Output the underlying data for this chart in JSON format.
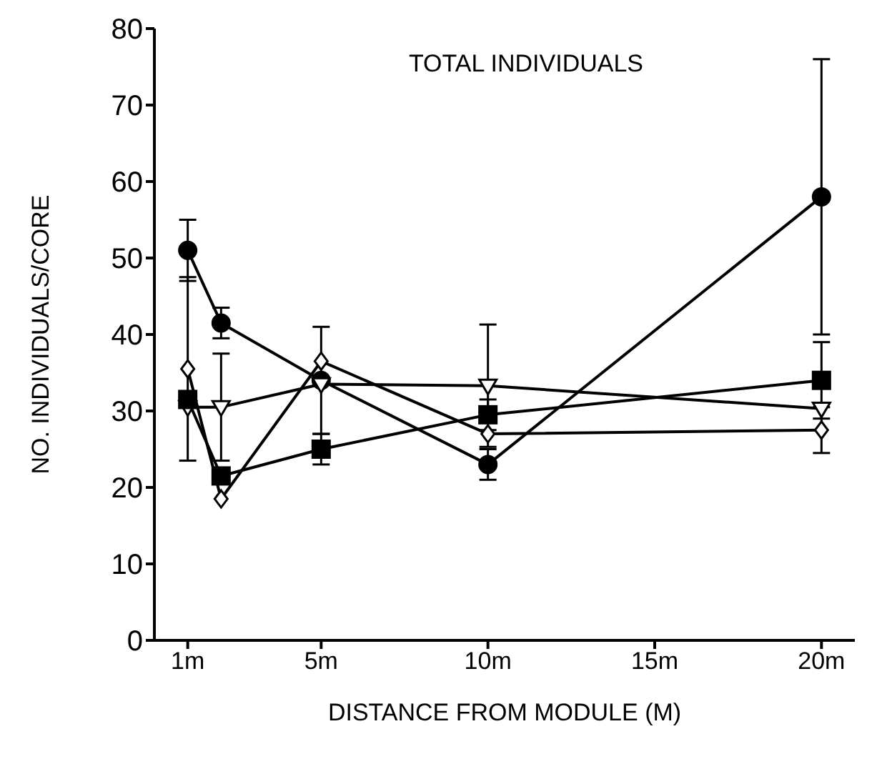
{
  "chart_data": {
    "type": "line",
    "title": "TOTAL INDIVIDUALS",
    "xlabel": "DISTANCE FROM MODULE (M)",
    "ylabel": "NO. INDIVIDUALS/CORE",
    "x": [
      1,
      2,
      5,
      10,
      20
    ],
    "xlim": [
      0,
      21
    ],
    "xticks": [
      {
        "value": 1,
        "label": "1m"
      },
      {
        "value": 5,
        "label": "5m"
      },
      {
        "value": 10,
        "label": "10m"
      },
      {
        "value": 15,
        "label": "15m"
      },
      {
        "value": 20,
        "label": "20m"
      }
    ],
    "ylim": [
      0,
      80
    ],
    "yticks": [
      0,
      10,
      20,
      30,
      40,
      50,
      60,
      70,
      80
    ],
    "series": [
      {
        "color": "#000000",
        "marker": "circle",
        "values": [
          51,
          41.5,
          34,
          23,
          58
        ],
        "errors": [
          4,
          2,
          7,
          2,
          18
        ]
      },
      {
        "color": "#000000",
        "marker": "triangle",
        "values": [
          30.5,
          30.5,
          33.5,
          33.3,
          30.3
        ],
        "errors": [
          null,
          7,
          null,
          8,
          null
        ]
      },
      {
        "color": "#000000",
        "marker": "square",
        "values": [
          31.5,
          21.5,
          25,
          29.5,
          34
        ],
        "errors": [
          null,
          null,
          2,
          2,
          5
        ]
      },
      {
        "color": "#000000",
        "marker": "diamond",
        "values": [
          35.5,
          18.5,
          36.5,
          27,
          27.5
        ],
        "errors": [
          12,
          null,
          null,
          null,
          3
        ]
      }
    ],
    "grid": false,
    "legend": false,
    "line_style": "solid"
  }
}
